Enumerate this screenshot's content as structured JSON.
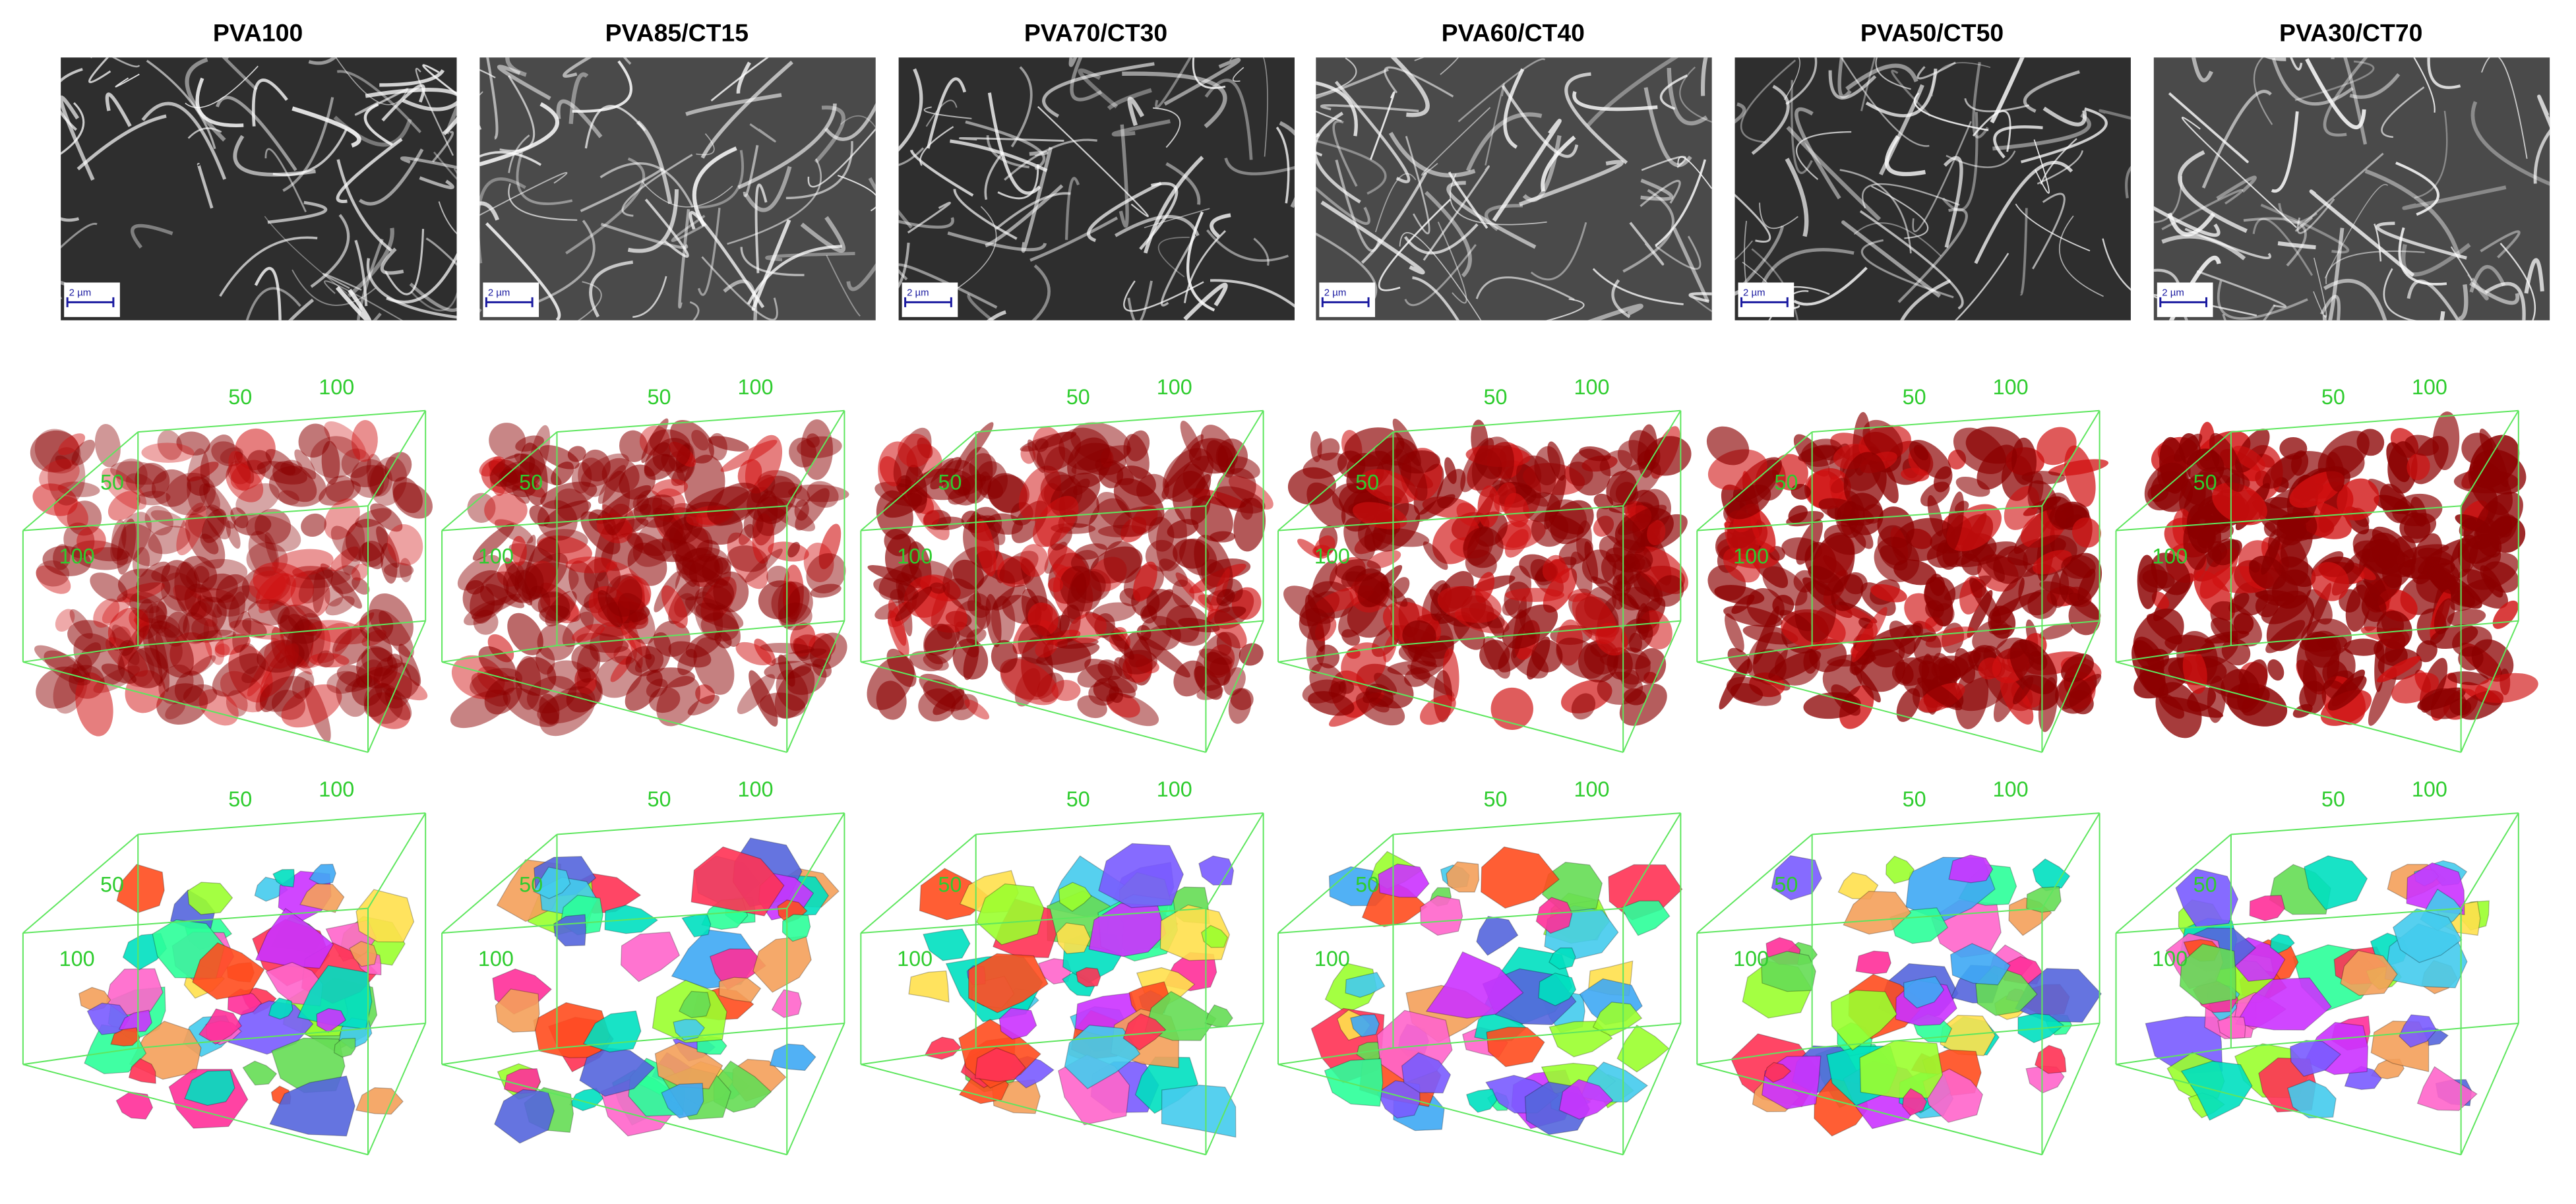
{
  "panels": [
    {
      "title": "PVA100",
      "scale_bar": "2 µm",
      "volume": {
        "top_labels": [
          50,
          100
        ],
        "left_labels": [
          50,
          100
        ]
      },
      "segmentation": {
        "top_labels": [
          50,
          100
        ],
        "left_labels": [
          50,
          100
        ]
      }
    },
    {
      "title": "PVA85/CT15",
      "scale_bar": "2 µm",
      "volume": {
        "top_labels": [
          50,
          100
        ],
        "left_labels": [
          50,
          100
        ]
      },
      "segmentation": {
        "top_labels": [
          50,
          100
        ],
        "left_labels": [
          50,
          100
        ]
      }
    },
    {
      "title": "PVA70/CT30",
      "scale_bar": "2 µm",
      "volume": {
        "top_labels": [
          50,
          100
        ],
        "left_labels": [
          50,
          100
        ]
      },
      "segmentation": {
        "top_labels": [
          50,
          100
        ],
        "left_labels": [
          50,
          100
        ]
      }
    },
    {
      "title": "PVA60/CT40",
      "scale_bar": "2 µm",
      "volume": {
        "top_labels": [
          50,
          100
        ],
        "left_labels": [
          50,
          100
        ]
      },
      "segmentation": {
        "top_labels": [
          50,
          100
        ],
        "left_labels": [
          50,
          100
        ]
      }
    },
    {
      "title": "PVA50/CT50",
      "scale_bar": "2 µm",
      "volume": {
        "top_labels": [
          50,
          100
        ],
        "left_labels": [
          50,
          100
        ]
      },
      "segmentation": {
        "top_labels": [
          50,
          100
        ],
        "left_labels": [
          50,
          100
        ]
      }
    },
    {
      "title": "PVA30/CT70",
      "scale_bar": "2 µm",
      "volume": {
        "top_labels": [
          50,
          100
        ],
        "left_labels": [
          50,
          100
        ]
      },
      "segmentation": {
        "top_labels": [
          50,
          100
        ],
        "left_labels": [
          50,
          100
        ]
      }
    }
  ]
}
